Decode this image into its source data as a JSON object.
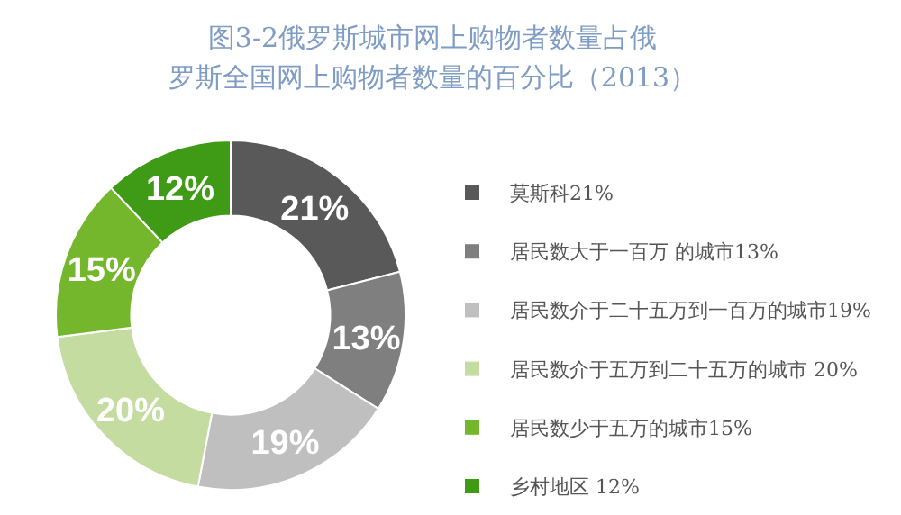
{
  "chart_data": {
    "type": "donut",
    "title": "图3-2俄罗斯城市网上购物者数量占俄罗斯全国网上购物者数量的百分比（2013）",
    "categories": [
      "莫斯科21%",
      "居民数大于一百万  的城市13%",
      "居民数介于二十五万到一百万的城市19%",
      "居民数介于五万到二十五万的城市  20%",
      "居民数少于五万的城市15%",
      "乡村地区  12%"
    ],
    "values": [
      21,
      13,
      19,
      20,
      15,
      12
    ],
    "colors": [
      "#595959",
      "#7f7f7f",
      "#bfbfbf",
      "#c4dc9f",
      "#74b62c",
      "#3f9a16"
    ],
    "value_labels": [
      "21%",
      "13%",
      "19%",
      "20%",
      "15%",
      "12%"
    ],
    "legend": "right"
  }
}
